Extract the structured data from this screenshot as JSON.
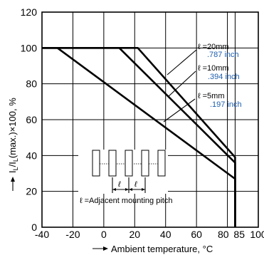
{
  "chart_data": {
    "type": "line",
    "title": "",
    "xlabel": "Ambient temperature, °C",
    "ylabel": "IL/IL(max.)×100, %",
    "ylabel_parts": {
      "I1": "I",
      "L1": "L",
      "mid": "/I",
      "L2": "L",
      "tail": "(max.)×100, %"
    },
    "xlim": [
      -40,
      100
    ],
    "ylim": [
      0,
      120
    ],
    "x_ticks": [
      "-40",
      "-20",
      "0",
      "20",
      "40",
      "60",
      "80",
      "85",
      "100"
    ],
    "y_ticks": [
      "0",
      "20",
      "40",
      "60",
      "80",
      "100",
      "120"
    ],
    "grid": true,
    "series": [
      {
        "name": "ℓ=20mm .787 inch",
        "x": [
          -40,
          22,
          85,
          85
        ],
        "y": [
          100,
          100,
          39,
          0
        ]
      },
      {
        "name": "ℓ=10mm .394 inch",
        "x": [
          -40,
          10,
          85,
          85
        ],
        "y": [
          100,
          100,
          36,
          0
        ]
      },
      {
        "name": "ℓ=5mm .197 inch",
        "x": [
          -40,
          -30,
          85,
          85
        ],
        "y": [
          100,
          100,
          27,
          0
        ]
      }
    ],
    "annotations": [
      {
        "mm": "ℓ =20mm",
        "inch": ".787 inch"
      },
      {
        "mm": "ℓ =10mm",
        "inch": ".394 inch"
      },
      {
        "mm": "ℓ =5mm",
        "inch": ".197 inch"
      }
    ],
    "inset": {
      "pitch_symbol": "ℓ",
      "caption": "ℓ =Adjacent mounting pitch"
    }
  }
}
